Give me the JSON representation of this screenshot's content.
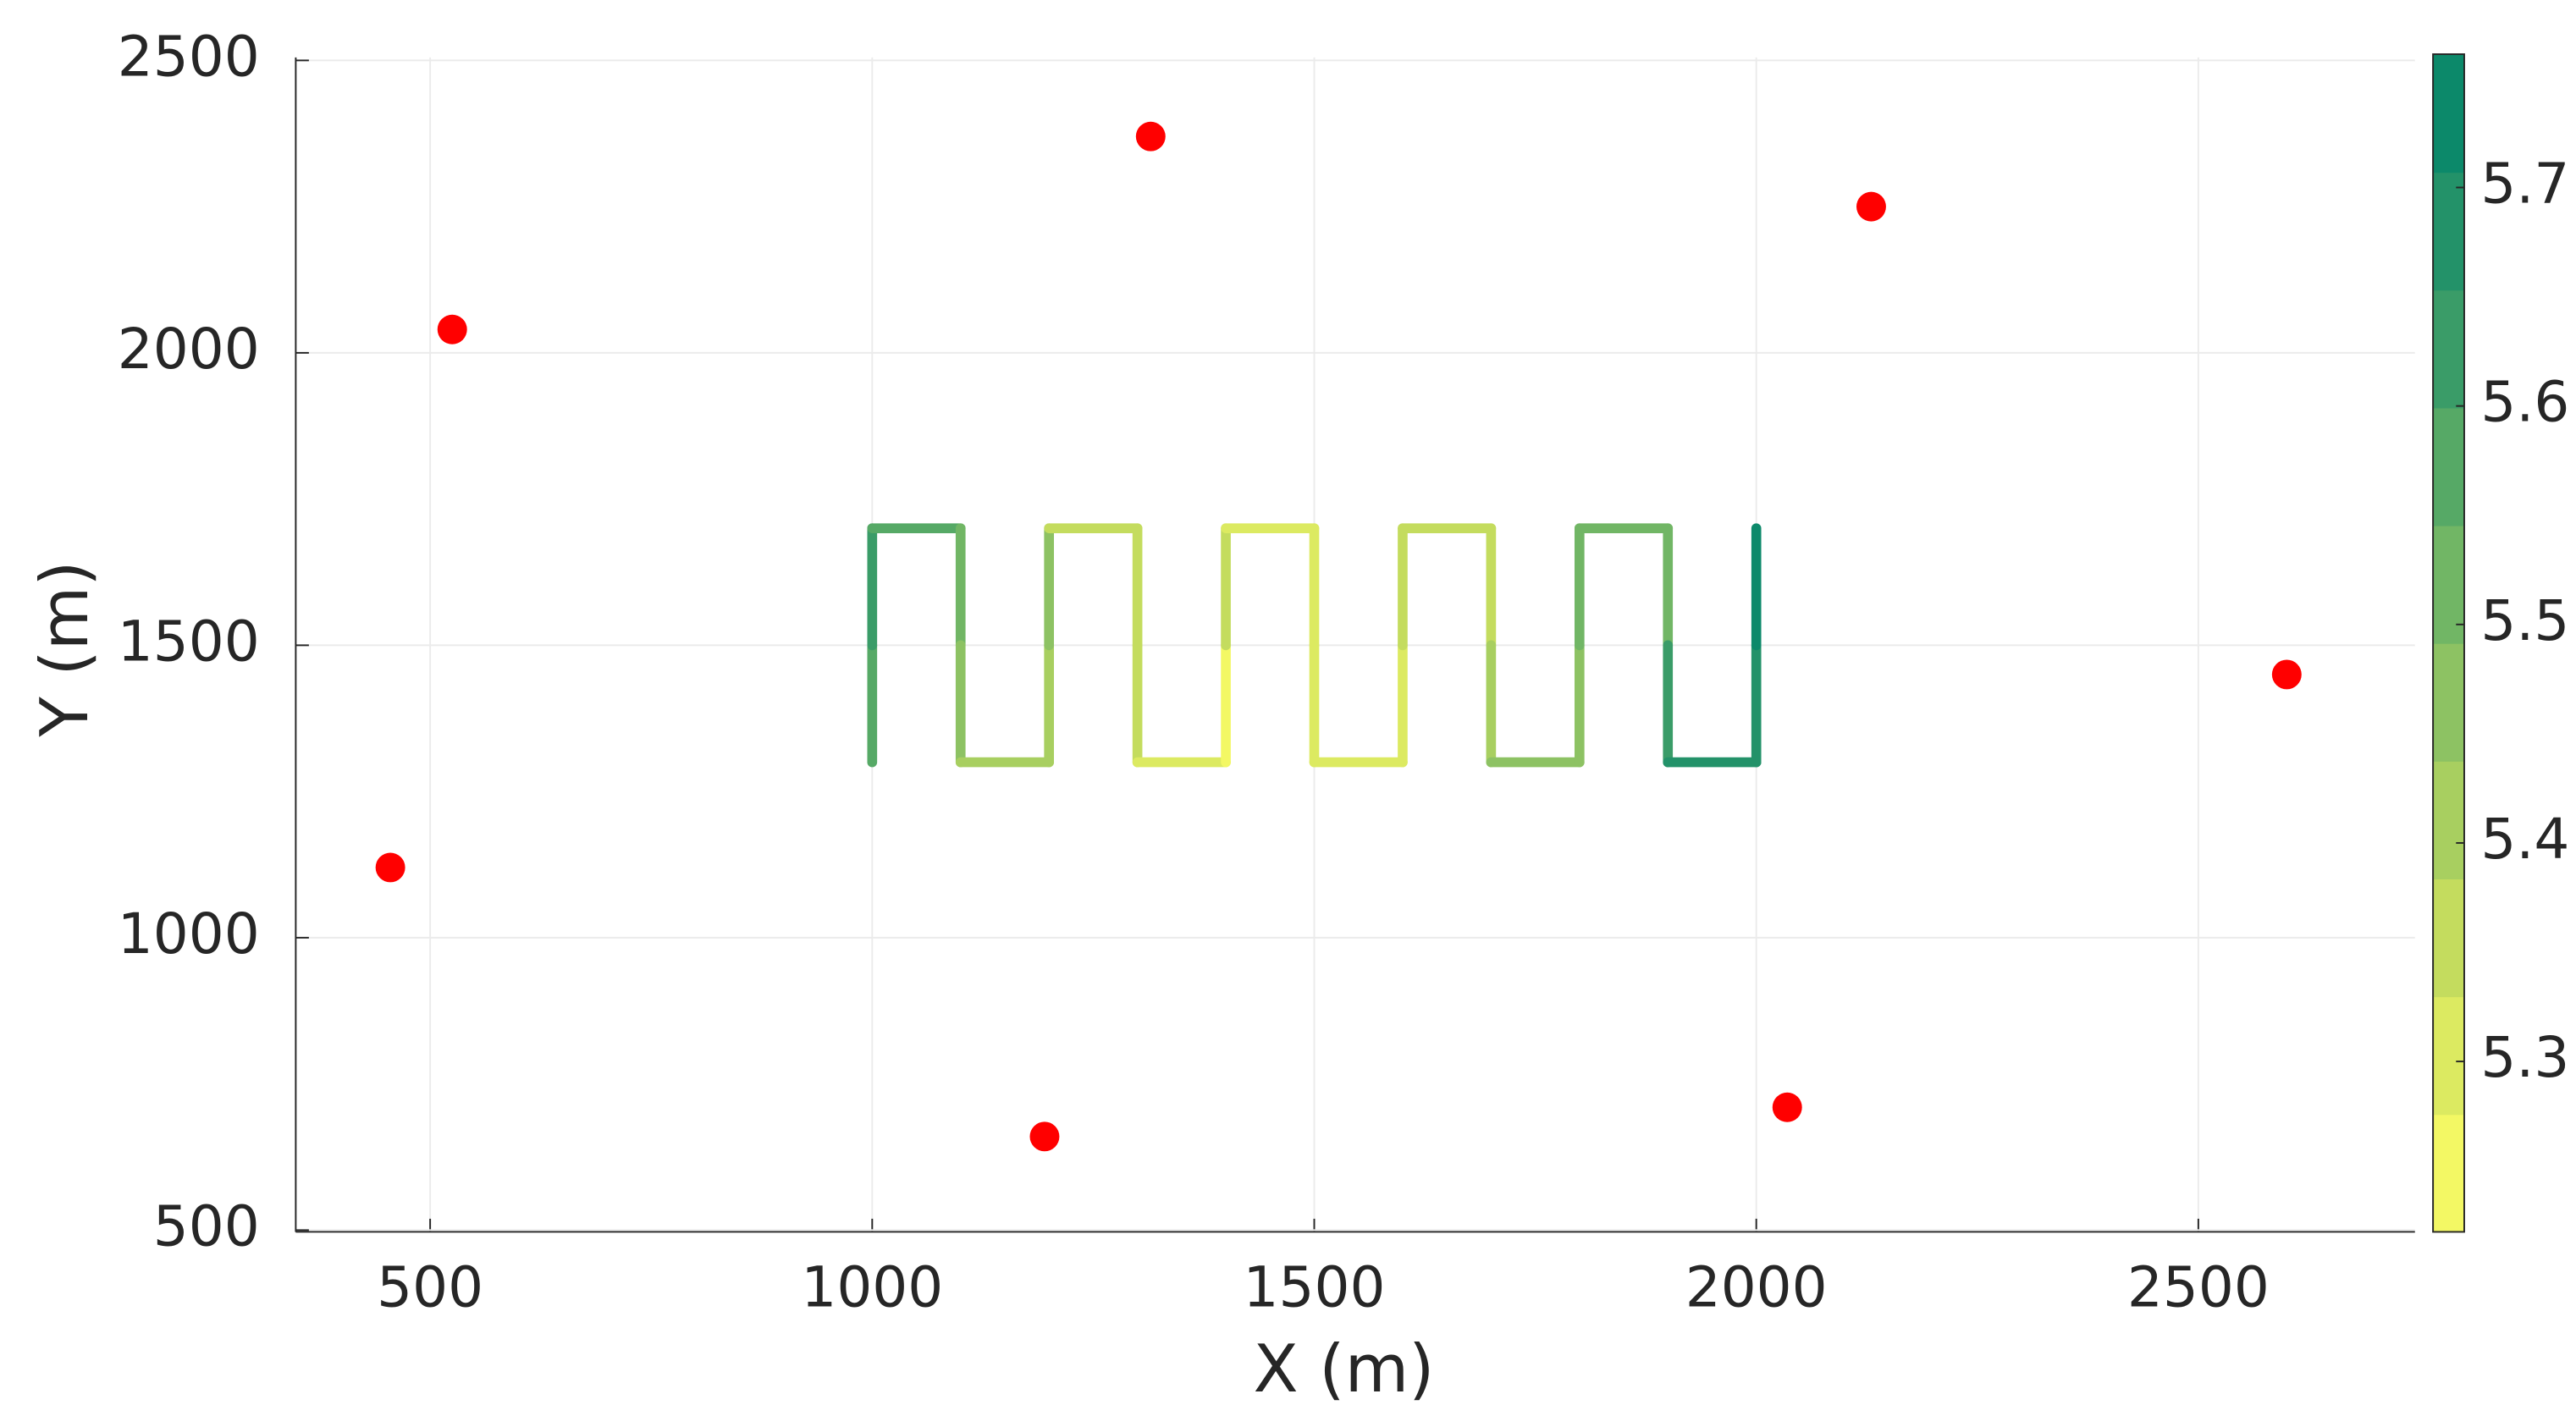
{
  "chart_data": {
    "type": "scatter",
    "xlabel": "X (m)",
    "ylabel": "Y (m)",
    "xlim": [
      348,
      2745
    ],
    "ylim": [
      497,
      2505
    ],
    "xticks": [
      500,
      1000,
      1500,
      2000,
      2500
    ],
    "yticks": [
      500,
      1000,
      1500,
      2000,
      2500
    ],
    "grid": true,
    "points": {
      "color": "#ff0000",
      "x": [
        455,
        525,
        1315,
        1195,
        2130,
        2035,
        2600
      ],
      "y": [
        1120,
        2040,
        2370,
        660,
        2250,
        710,
        1450
      ]
    },
    "path": {
      "x": [
        1000,
        1000,
        1000,
        1100,
        1100,
        1100,
        1200,
        1200,
        1200,
        1300,
        1300,
        1300,
        1400,
        1400,
        1400,
        1500,
        1500,
        1500,
        1600,
        1600,
        1600,
        1700,
        1700,
        1700,
        1800,
        1800,
        1800,
        1900,
        1900,
        1900,
        2000,
        2000,
        2000
      ],
      "y": [
        1300,
        1500,
        1700,
        1700,
        1500,
        1300,
        1300,
        1500,
        1700,
        1700,
        1500,
        1300,
        1300,
        1500,
        1700,
        1700,
        1500,
        1300,
        1300,
        1500,
        1700,
        1700,
        1500,
        1300,
        1300,
        1500,
        1700,
        1700,
        1500,
        1300,
        1300,
        1500,
        1700
      ],
      "values": [
        5.55,
        5.56,
        5.6,
        5.55,
        5.5,
        5.47,
        5.42,
        5.4,
        5.44,
        5.38,
        5.33,
        5.36,
        5.32,
        5.27,
        5.35,
        5.3,
        5.28,
        5.32,
        5.31,
        5.3,
        5.36,
        5.38,
        5.38,
        5.42,
        5.44,
        5.45,
        5.52,
        5.5,
        5.5,
        5.62,
        5.7,
        5.7,
        5.74
      ]
    },
    "colorbar": {
      "clim": [
        5.222,
        5.761
      ],
      "levels": 10,
      "colors": [
        "#ffff66",
        "#c4dc5e",
        "#7fbc64",
        "#3a9c68",
        "#00846a"
      ],
      "ticks": [
        5.3,
        5.4,
        5.5,
        5.6,
        5.7
      ]
    }
  }
}
